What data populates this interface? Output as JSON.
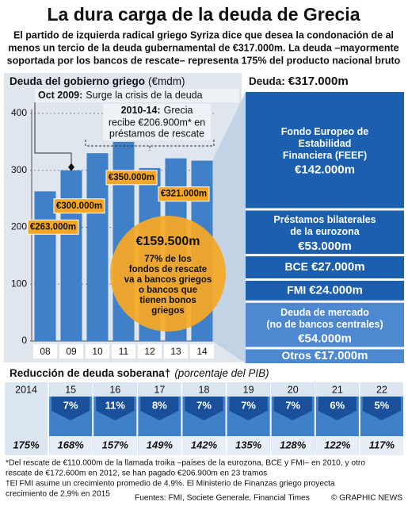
{
  "header": {
    "title": "La dura carga de la deuda de Grecia",
    "subtitle": [
      "El partido de izquierda radical griego Syriza dice que desea la condonación de al",
      "menos un tercio de la deuda gubernamental de €317.000m.  La deuda –mayormente",
      "soportada por los bancos de rescate– representa 175% del producto nacional bruto"
    ]
  },
  "chart_data": [
    {
      "type": "bar",
      "title": "Deuda del gobierno griego",
      "y_label": "(€mdm)",
      "categories": [
        "08",
        "09",
        "10",
        "11",
        "12",
        "13",
        "14"
      ],
      "values": [
        263,
        300,
        330,
        350,
        304,
        321,
        317
      ],
      "value_labels": [
        "€263.000m",
        "€300.000m",
        null,
        "€350.000m",
        null,
        "€321.000m",
        null
      ],
      "color": "#3f80c9",
      "label_color": "#f5a623",
      "ylim": [
        0,
        400
      ],
      "yticks": [
        0,
        100,
        200,
        300,
        400
      ],
      "grid": true,
      "annotations": [
        {
          "label": "Oct 2009:",
          "text": "Surge la crisis de la deuda"
        },
        {
          "label": "2010-14:",
          "lines": [
            "Grecia",
            "recibe €206.900m* en",
            "préstamos de rescate"
          ]
        }
      ],
      "callout": {
        "amount": "€159.500m",
        "lines": [
          "77% de los",
          "fondos de rescate",
          "va a bancos griegos",
          "o bancos que",
          "tienen bonos",
          "griegos"
        ],
        "color": "#f7a823"
      }
    },
    {
      "type": "stacked_bar",
      "title": "Deuda:",
      "total": {
        "value": 317,
        "label": "€317.000m"
      },
      "categories": [
        [
          "Fondo Europeo de",
          "Estabilidad",
          "Financiera (FEEF)"
        ],
        [
          "Préstamos bilaterales",
          "de la eurozona"
        ],
        [
          "BCE"
        ],
        [
          "FMI"
        ],
        [
          "Deuda de mercado",
          "(no de bancos centrales)"
        ],
        [
          "Otros"
        ]
      ],
      "values": [
        142,
        53,
        27,
        24,
        54,
        17
      ],
      "value_labels": [
        "€142.000m",
        "€53.000m",
        "€27.000m",
        "€24.000m",
        "€54.000m",
        "€17.000m"
      ],
      "colors": [
        "#1c5fae",
        "#1c5fae",
        "#1c5fae",
        "#1c5fae",
        "#4d88d1",
        "#4d88d1"
      ]
    },
    {
      "type": "strip",
      "title": "Reducción de deuda soberana†",
      "subtitle": "(porcentaje del PIB)",
      "categories": [
        "2014",
        "15",
        "16",
        "17",
        "18",
        "19",
        "20",
        "21",
        "22"
      ],
      "values": [
        175,
        168,
        157,
        149,
        142,
        135,
        128,
        122,
        117
      ],
      "value_labels": [
        "175%",
        "168%",
        "157%",
        "149%",
        "142%",
        "135%",
        "128%",
        "122%",
        "117%"
      ],
      "reductions": [
        null,
        7,
        11,
        8,
        7,
        7,
        7,
        6,
        5
      ],
      "reduction_labels": [
        null,
        "7%",
        "11%",
        "8%",
        "7%",
        "7%",
        "7%",
        "6%",
        "5%"
      ],
      "color": "#3f80c9"
    }
  ],
  "footnotes": [
    [
      "*Del rescate de €110.000m de la llamada troika –países de la eurozona, BCE y FMI– en 2010, y otro",
      "rescate de €172.600m en 2012, se han pagado €206.900m en 23 tramos"
    ],
    [
      "†El FMI asume un crecimiento promedio de 4,9%. El Ministerio de Finanzas griego proyecta",
      "crecimiento de 2,9% en 2015"
    ]
  ],
  "source": "Fuentes: FMI, Societe Generale, Financial Times",
  "credit": "© GRAPHIC NEWS"
}
